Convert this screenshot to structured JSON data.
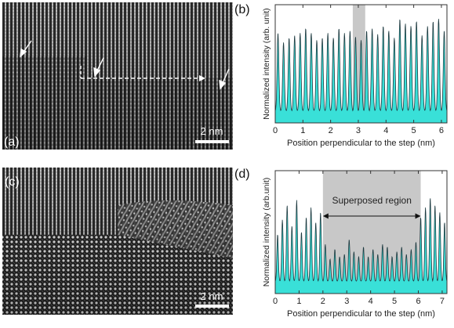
{
  "figure": {
    "panels": {
      "a": {
        "label": "(a)",
        "scale_bar_text": "2 nm"
      },
      "b": {
        "label": "(b)"
      },
      "c": {
        "label": "(c)",
        "scale_bar_text": "2 nm"
      },
      "d": {
        "label": "(d)",
        "annotation": "Superposed region"
      }
    },
    "colors": {
      "fill": "#39e0d8",
      "line": "#1e3a40",
      "shade": "#c8c8c8",
      "axis": "#333333"
    }
  },
  "chart_data": [
    {
      "panel": "b",
      "type": "line",
      "xlabel": "Position perpendicular to the step (nm)",
      "ylabel": "Normalized intensity (arb. unit)",
      "xlim": [
        0,
        6.2
      ],
      "xticks": [
        0,
        1,
        2,
        3,
        4,
        5,
        6
      ],
      "ylim": [
        0,
        1
      ],
      "yticks": [],
      "shaded_region": [
        2.8,
        3.25
      ],
      "peak_period_nm": 0.2,
      "peaks": [
        {
          "x": 0.1,
          "y": 0.76
        },
        {
          "x": 0.3,
          "y": 0.68
        },
        {
          "x": 0.5,
          "y": 0.72
        },
        {
          "x": 0.7,
          "y": 0.74
        },
        {
          "x": 0.9,
          "y": 0.76
        },
        {
          "x": 1.1,
          "y": 0.8
        },
        {
          "x": 1.3,
          "y": 0.76
        },
        {
          "x": 1.5,
          "y": 0.7
        },
        {
          "x": 1.7,
          "y": 0.72
        },
        {
          "x": 1.9,
          "y": 0.76
        },
        {
          "x": 2.1,
          "y": 0.72
        },
        {
          "x": 2.3,
          "y": 0.8
        },
        {
          "x": 2.5,
          "y": 0.76
        },
        {
          "x": 2.7,
          "y": 0.78
        },
        {
          "x": 2.9,
          "y": 0.73
        },
        {
          "x": 3.1,
          "y": 0.7
        },
        {
          "x": 3.3,
          "y": 0.78
        },
        {
          "x": 3.5,
          "y": 0.8
        },
        {
          "x": 3.7,
          "y": 0.75
        },
        {
          "x": 3.9,
          "y": 0.82
        },
        {
          "x": 4.1,
          "y": 0.78
        },
        {
          "x": 4.3,
          "y": 0.72
        },
        {
          "x": 4.5,
          "y": 0.88
        },
        {
          "x": 4.7,
          "y": 0.84
        },
        {
          "x": 4.9,
          "y": 0.82
        },
        {
          "x": 5.1,
          "y": 0.86
        },
        {
          "x": 5.3,
          "y": 0.74
        },
        {
          "x": 5.5,
          "y": 0.82
        },
        {
          "x": 5.7,
          "y": 0.86
        },
        {
          "x": 5.9,
          "y": 0.88
        },
        {
          "x": 6.1,
          "y": 0.78
        }
      ],
      "baseline": 0.1
    },
    {
      "panel": "d",
      "type": "line",
      "xlabel": "Position perpendicular to the step (nm)",
      "ylabel": "Normalized intensity (arb.unit)",
      "xlim": [
        0,
        7.2
      ],
      "xticks": [
        0,
        1,
        2,
        3,
        4,
        5,
        6,
        7
      ],
      "ylim": [
        0,
        1
      ],
      "yticks": [],
      "shaded_region": [
        2.0,
        6.1
      ],
      "annotation_arrow": [
        2.0,
        6.1
      ],
      "peak_period_nm": 0.2,
      "peaks": [
        {
          "x": 0.1,
          "y": 0.48
        },
        {
          "x": 0.3,
          "y": 0.6
        },
        {
          "x": 0.5,
          "y": 0.72
        },
        {
          "x": 0.7,
          "y": 0.55
        },
        {
          "x": 0.9,
          "y": 0.76
        },
        {
          "x": 1.1,
          "y": 0.5
        },
        {
          "x": 1.3,
          "y": 0.62
        },
        {
          "x": 1.5,
          "y": 0.7
        },
        {
          "x": 1.7,
          "y": 0.58
        },
        {
          "x": 1.9,
          "y": 0.66
        },
        {
          "x": 2.1,
          "y": 0.4
        },
        {
          "x": 2.3,
          "y": 0.28
        },
        {
          "x": 2.5,
          "y": 0.36
        },
        {
          "x": 2.7,
          "y": 0.3
        },
        {
          "x": 2.9,
          "y": 0.32
        },
        {
          "x": 3.1,
          "y": 0.44
        },
        {
          "x": 3.3,
          "y": 0.34
        },
        {
          "x": 3.5,
          "y": 0.3
        },
        {
          "x": 3.7,
          "y": 0.38
        },
        {
          "x": 3.9,
          "y": 0.3
        },
        {
          "x": 4.1,
          "y": 0.36
        },
        {
          "x": 4.3,
          "y": 0.32
        },
        {
          "x": 4.5,
          "y": 0.4
        },
        {
          "x": 4.7,
          "y": 0.38
        },
        {
          "x": 4.9,
          "y": 0.3
        },
        {
          "x": 5.1,
          "y": 0.34
        },
        {
          "x": 5.3,
          "y": 0.38
        },
        {
          "x": 5.5,
          "y": 0.32
        },
        {
          "x": 5.7,
          "y": 0.36
        },
        {
          "x": 5.9,
          "y": 0.42
        },
        {
          "x": 6.1,
          "y": 0.62
        },
        {
          "x": 6.3,
          "y": 0.7
        },
        {
          "x": 6.5,
          "y": 0.78
        },
        {
          "x": 6.7,
          "y": 0.72
        },
        {
          "x": 6.9,
          "y": 0.66
        },
        {
          "x": 7.1,
          "y": 0.58
        }
      ],
      "baseline": 0.1
    }
  ]
}
